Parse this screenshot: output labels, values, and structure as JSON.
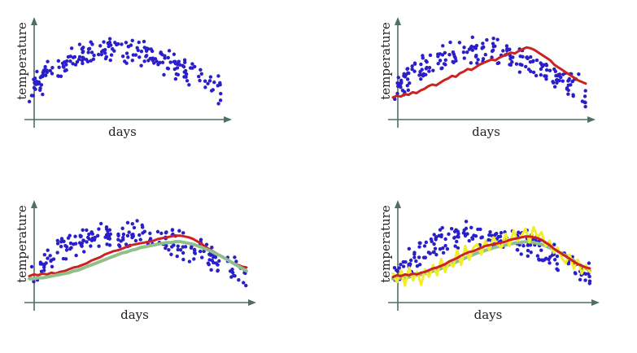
{
  "colors": {
    "axis": "#4f6f63",
    "points": "#2a1fc8",
    "series_red": "#cc2222",
    "series_green": "#8ec08a",
    "series_yellow": "#f2ec2a"
  },
  "chart_data": [
    {
      "type": "scatter",
      "xlabel": "days",
      "ylabel": "temperature",
      "xlim": [
        0,
        100
      ],
      "ylim": [
        0,
        100
      ],
      "grid": false,
      "points": {
        "seed": 11,
        "count": 200
      },
      "series": []
    },
    {
      "type": "scatter",
      "xlabel": "days",
      "ylabel": "temperature",
      "xlim": [
        0,
        100
      ],
      "ylim": [
        0,
        100
      ],
      "grid": false,
      "points": {
        "seed": 23,
        "count": 200
      },
      "series": [
        {
          "style": "red",
          "values": [
            20,
            22,
            21,
            24,
            23,
            26,
            25,
            28,
            30,
            33,
            35,
            34,
            37,
            40,
            42,
            45,
            44,
            48,
            50,
            53,
            52,
            55,
            58,
            60,
            62,
            64,
            63,
            66,
            68,
            70,
            72,
            71,
            74,
            76,
            78,
            77,
            75,
            72,
            69,
            66,
            63,
            58,
            55,
            52,
            49,
            46,
            43,
            40,
            38,
            36
          ]
        }
      ]
    },
    {
      "type": "scatter",
      "xlabel": "days",
      "ylabel": "temperature",
      "xlim": [
        0,
        100
      ],
      "ylim": [
        0,
        100
      ],
      "grid": false,
      "points": {
        "seed": 37,
        "count": 200
      },
      "series": [
        {
          "style": "red",
          "values": [
            25,
            27,
            26,
            28,
            27,
            29,
            28,
            30,
            31,
            33,
            35,
            36,
            38,
            40,
            43,
            45,
            47,
            50,
            52,
            54,
            55,
            57,
            59,
            61,
            62,
            63,
            64,
            65,
            66,
            68,
            69,
            70,
            71,
            72,
            72,
            71,
            70,
            68,
            65,
            62,
            58,
            55,
            52,
            49,
            46,
            43,
            40,
            38,
            36,
            35
          ]
        },
        {
          "style": "green",
          "values": [
            22,
            22,
            23,
            23,
            24,
            25,
            26,
            27,
            28,
            29,
            31,
            32,
            34,
            36,
            38,
            40,
            42,
            44,
            46,
            48,
            50,
            52,
            53,
            55,
            56,
            58,
            59,
            60,
            61,
            62,
            63,
            64,
            64,
            65,
            65,
            64,
            63,
            62,
            60,
            58,
            56,
            54,
            51,
            49,
            46,
            43,
            40,
            37,
            34,
            31
          ]
        }
      ]
    },
    {
      "type": "scatter",
      "xlabel": "days",
      "ylabel": "temperature",
      "xlim": [
        0,
        100
      ],
      "ylim": [
        0,
        100
      ],
      "grid": false,
      "points": {
        "seed": 53,
        "count": 200
      },
      "series": [
        {
          "style": "green",
          "values": [
            22,
            22,
            23,
            23,
            24,
            25,
            26,
            27,
            28,
            29,
            31,
            32,
            34,
            36,
            38,
            40,
            42,
            44,
            46,
            48,
            50,
            52,
            53,
            55,
            56,
            58,
            59,
            60,
            61,
            62,
            63,
            64,
            64,
            65,
            65,
            64,
            63,
            62,
            60,
            58,
            56,
            54,
            51,
            49,
            46,
            43,
            40,
            37,
            34,
            31
          ]
        },
        {
          "style": "yellow",
          "values": [
            28,
            18,
            32,
            14,
            35,
            20,
            30,
            15,
            33,
            24,
            38,
            26,
            45,
            30,
            42,
            36,
            55,
            38,
            60,
            44,
            58,
            62,
            50,
            66,
            55,
            70,
            62,
            58,
            74,
            60,
            78,
            66,
            72,
            80,
            64,
            82,
            70,
            76,
            60,
            66,
            52,
            58,
            46,
            40,
            50,
            34,
            44,
            28,
            38,
            30
          ]
        },
        {
          "style": "red",
          "values": [
            24,
            26,
            25,
            27,
            26,
            28,
            27,
            29,
            30,
            32,
            34,
            35,
            37,
            39,
            42,
            44,
            46,
            49,
            51,
            53,
            54,
            56,
            58,
            60,
            61,
            62,
            63,
            64,
            65,
            67,
            68,
            69,
            70,
            71,
            71,
            70,
            69,
            67,
            64,
            61,
            57,
            54,
            51,
            48,
            45,
            42,
            39,
            37,
            35,
            34
          ]
        }
      ]
    }
  ]
}
